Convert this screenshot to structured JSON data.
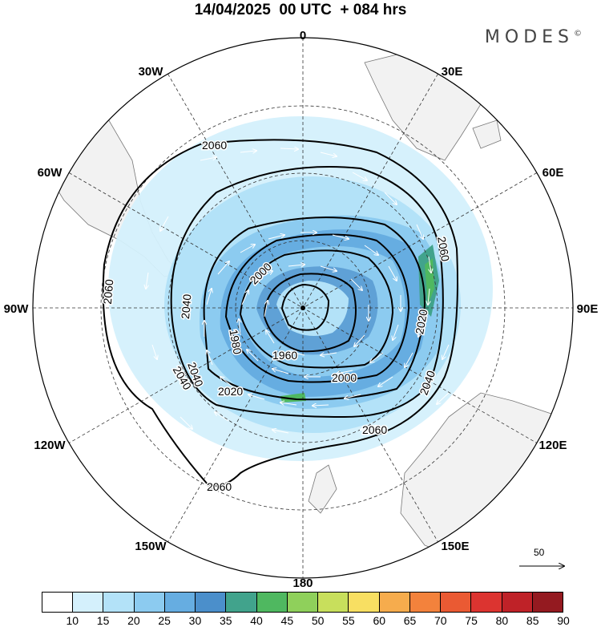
{
  "title": "14/04/2025  00 UTC  + 084 hrs",
  "brand": "MODES",
  "brand_mark": "©",
  "map": {
    "projection": "south-polar-stereographic",
    "longitude_labels": [
      "0",
      "30E",
      "60E",
      "90E",
      "120E",
      "150E",
      "180",
      "150W",
      "120W",
      "90W",
      "60W",
      "30W"
    ],
    "contour_labels": [
      "2060",
      "2060",
      "2060",
      "2060",
      "2060",
      "2040",
      "2040",
      "2040",
      "2040",
      "2020",
      "2020",
      "2000",
      "2000",
      "1980",
      "1960"
    ],
    "contour_levels": [
      1960,
      1980,
      2000,
      2020,
      2040,
      2060
    ],
    "land_color": "#f2f2f2"
  },
  "reference_vector": {
    "label": "50"
  },
  "colorbar": {
    "levels": [
      "10",
      "15",
      "20",
      "25",
      "30",
      "35",
      "40",
      "45",
      "50",
      "55",
      "60",
      "65",
      "70",
      "75",
      "80",
      "85",
      "90"
    ],
    "colors": [
      "#ffffff",
      "#d4f0fc",
      "#b3e2f8",
      "#8ccbf0",
      "#66ade1",
      "#4b8fcb",
      "#41a38c",
      "#4fb860",
      "#8fd05b",
      "#c8df5c",
      "#f8df62",
      "#f6ac4d",
      "#f3823c",
      "#ea5a33",
      "#dc3430",
      "#bf2228",
      "#941a20"
    ]
  }
}
